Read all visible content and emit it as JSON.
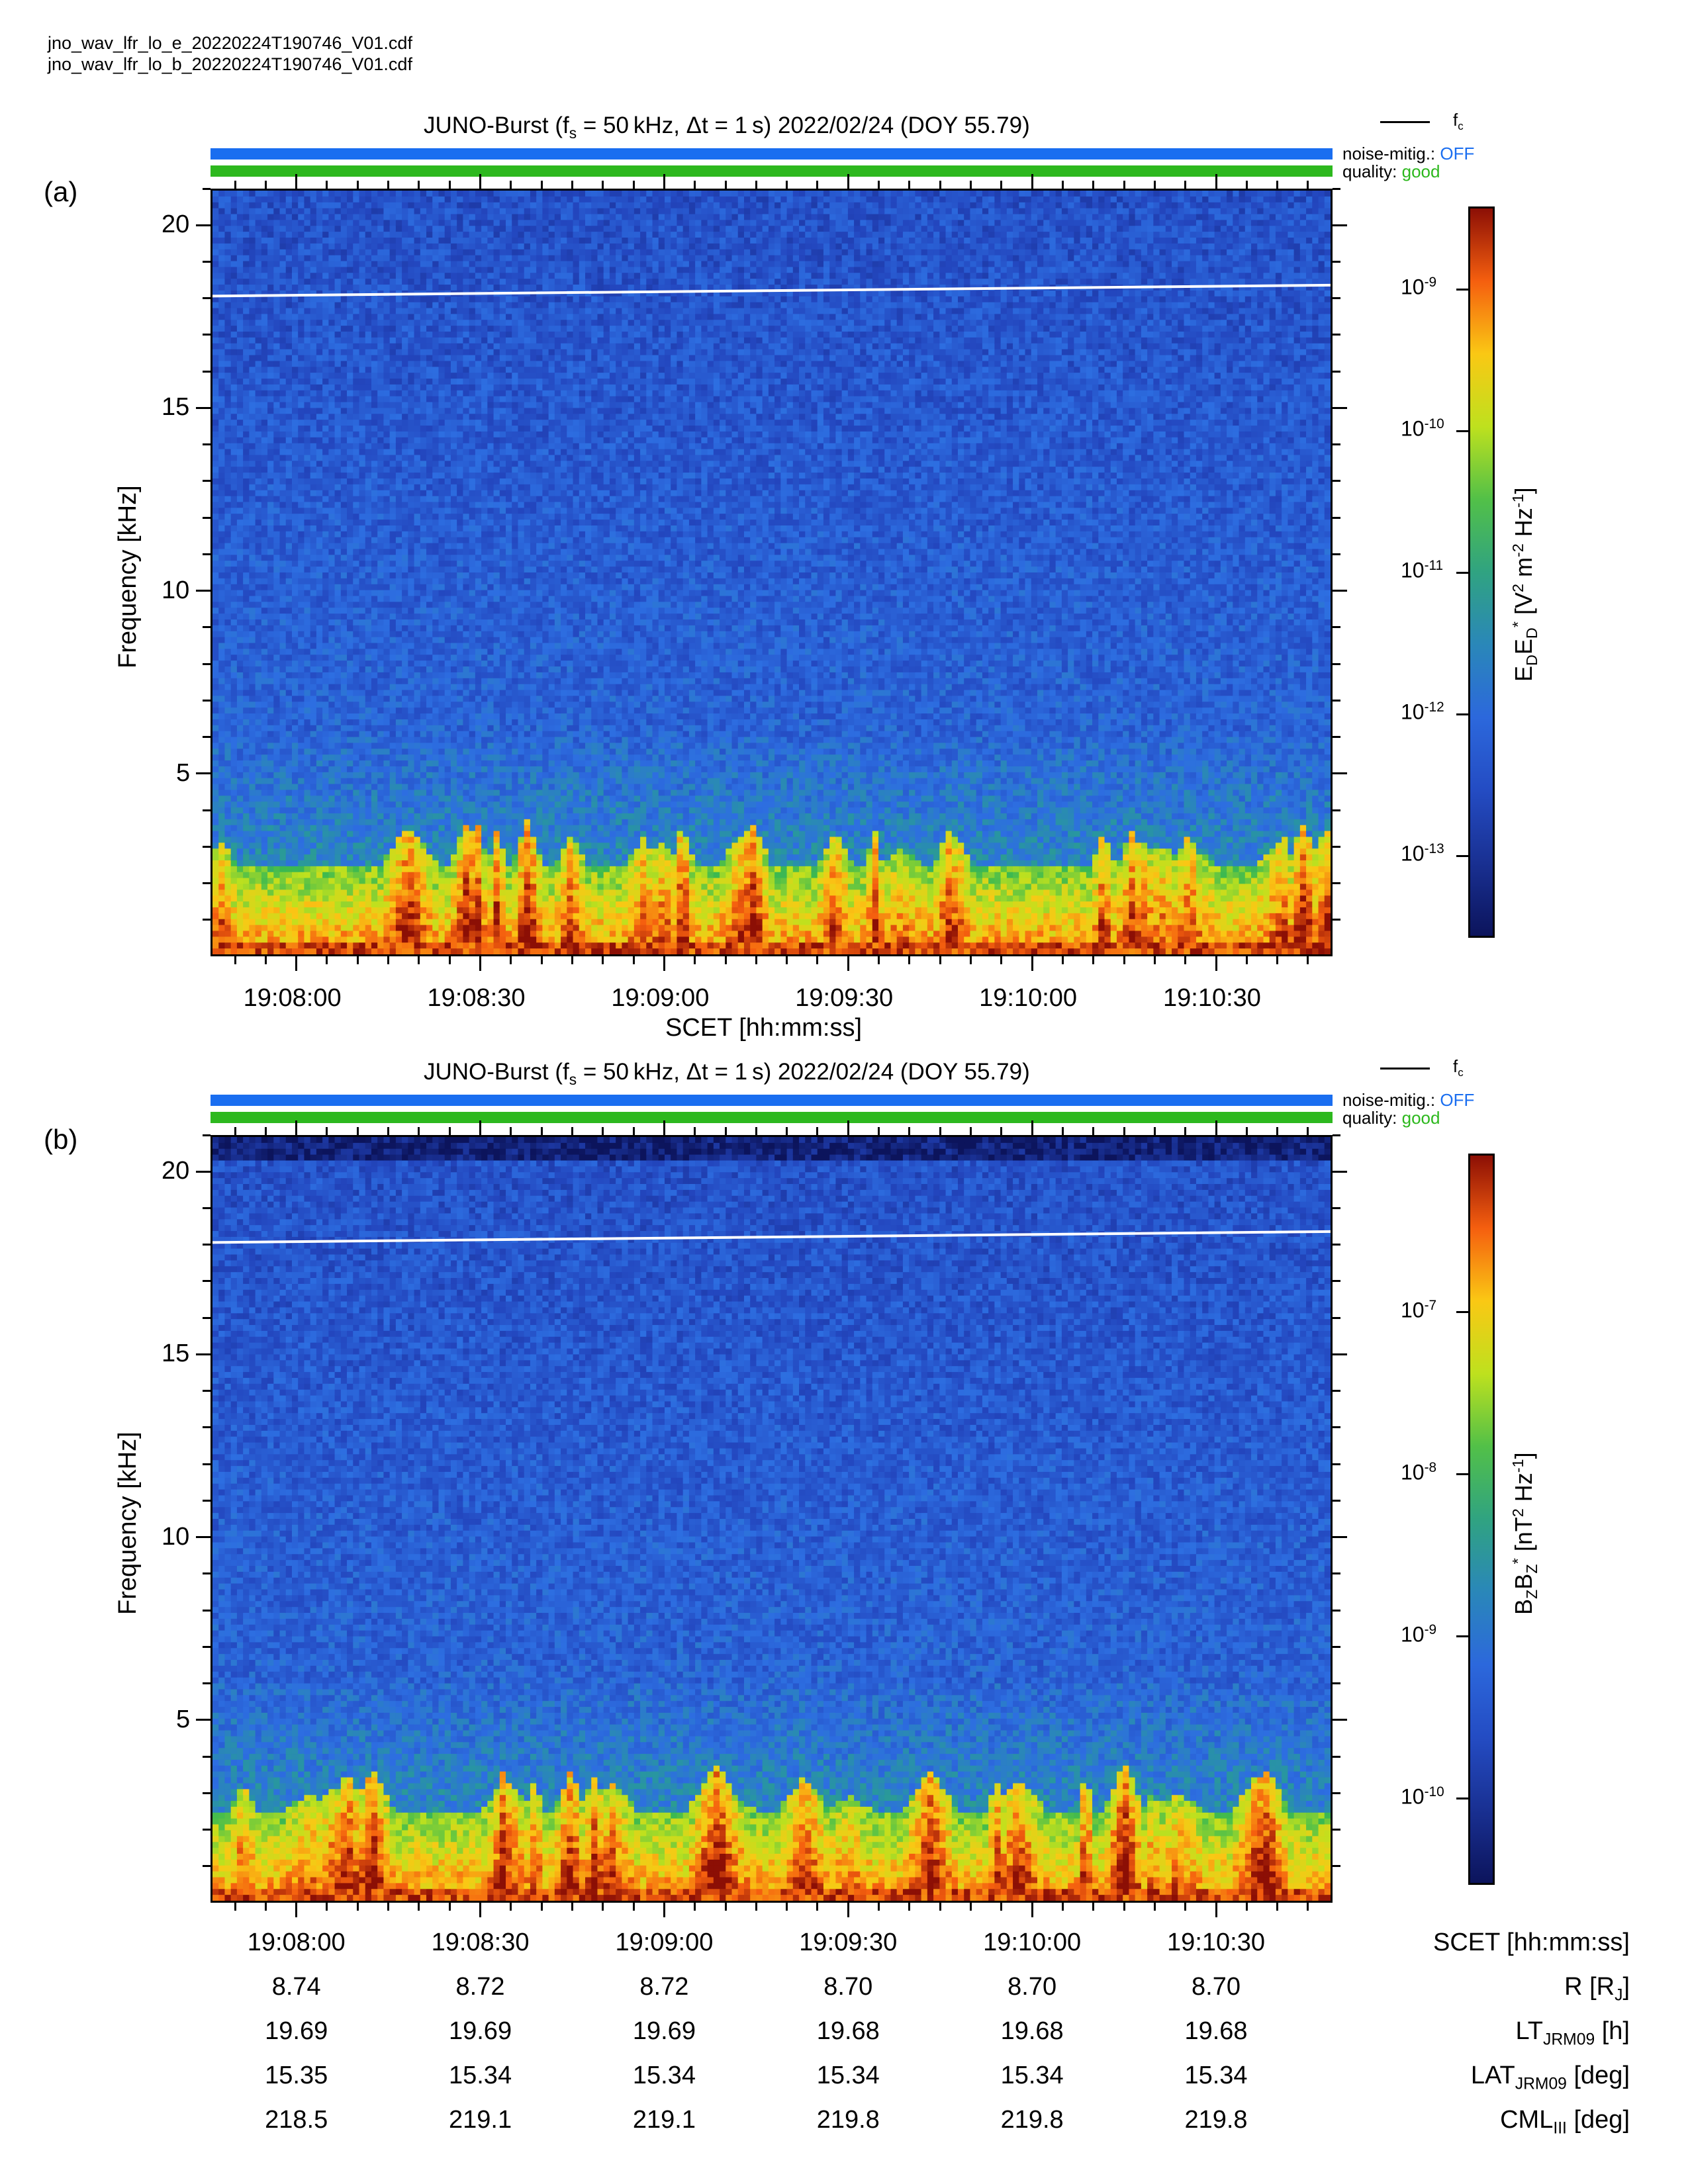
{
  "files": [
    "jno_wav_lfr_lo_e_20220224T190746_V01.cdf",
    "jno_wav_lfr_lo_b_20220224T190746_V01.cdf"
  ],
  "legend": {
    "line_label": "f",
    "line_sub": "c"
  },
  "status": {
    "noise_label": "noise-mitig.:",
    "noise_value": "OFF",
    "quality_label": "quality:",
    "quality_value": "good"
  },
  "colors": {
    "noise_bar": "#1a6ef0",
    "quality_bar": "#2db81e",
    "noise_text": "#1a6ef0",
    "quality_text": "#2db81e"
  },
  "chart_data": [
    {
      "type": "heatmap",
      "panel": "(a)",
      "title_prefix": "JUNO-Burst (f",
      "title_sub": "s",
      "title_rest": " = 50 kHz, Δt = 1 s)  2022/02/24 (DOY 55.79)",
      "xlabel": "SCET [hh:mm:ss]",
      "ylabel": "Frequency [kHz]",
      "xticks": [
        "19:08:00",
        "19:08:30",
        "19:09:00",
        "19:09:30",
        "19:10:00",
        "19:10:30"
      ],
      "yticks": [
        "5",
        "10",
        "15",
        "20"
      ],
      "ylim": [
        0,
        21
      ],
      "x_range": [
        "19:07:46",
        "19:10:49"
      ],
      "fc_line": {
        "start_khz": 18.1,
        "end_khz": 18.4
      },
      "colorbar": {
        "ticks": [
          "10-9",
          "10-10",
          "10-11",
          "10-12",
          "10-13"
        ],
        "scale": "log",
        "label": "E_D E_D* [V^2 m^-2 Hz^-1]"
      }
    },
    {
      "type": "heatmap",
      "panel": "(b)",
      "title_prefix": "JUNO-Burst (f",
      "title_sub": "s",
      "title_rest": " = 50 kHz, Δt = 1 s)  2022/02/24 (DOY 55.79)",
      "ylabel": "Frequency [kHz]",
      "xticks": [
        "19:08:00",
        "19:08:30",
        "19:09:00",
        "19:09:30",
        "19:10:00",
        "19:10:30"
      ],
      "yticks": [
        "5",
        "10",
        "15",
        "20"
      ],
      "ylim": [
        0,
        21
      ],
      "x_range": [
        "19:07:46",
        "19:10:49"
      ],
      "fc_line": {
        "start_khz": 18.1,
        "end_khz": 18.4
      },
      "colorbar": {
        "ticks": [
          "10-7",
          "10-8",
          "10-9",
          "10-10"
        ],
        "scale": "log",
        "label": "B_Z B_Z* [nT^2 Hz^-1]"
      }
    }
  ],
  "ephemeris": {
    "rows": [
      {
        "name": "SCET [hh:mm:ss]",
        "values": [
          "19:08:00",
          "19:08:30",
          "19:09:00",
          "19:09:30",
          "19:10:00",
          "19:10:30"
        ]
      },
      {
        "name": "R [R_J]",
        "values": [
          "8.74",
          "8.72",
          "8.72",
          "8.70",
          "8.70",
          "8.70"
        ]
      },
      {
        "name": "LT_JRM09 [h]",
        "values": [
          "19.69",
          "19.69",
          "19.69",
          "19.68",
          "19.68",
          "19.68"
        ]
      },
      {
        "name": "LAT_JRM09 [deg]",
        "values": [
          "15.35",
          "15.34",
          "15.34",
          "15.34",
          "15.34",
          "15.34"
        ]
      },
      {
        "name": "CML_III [deg]",
        "values": [
          "218.5",
          "219.1",
          "219.1",
          "219.8",
          "219.8",
          "219.8"
        ]
      }
    ]
  }
}
